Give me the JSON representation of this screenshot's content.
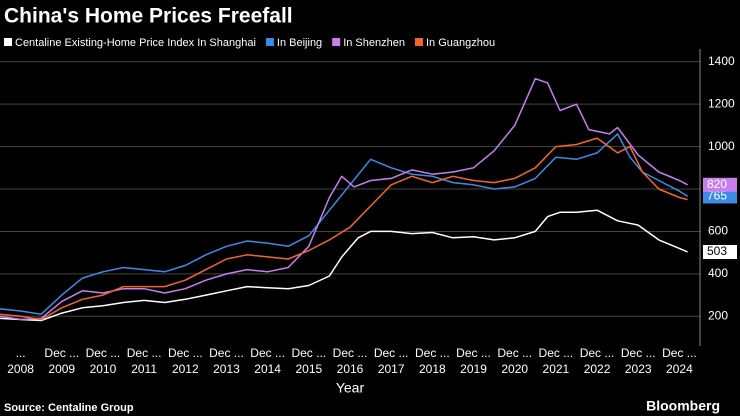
{
  "chart_data": {
    "type": "line",
    "title": "China's Home Prices Freefall",
    "x_label": "Year",
    "source": "Source: Centaline Group",
    "brand": "Bloomberg",
    "xlim": [
      2008,
      2025
    ],
    "xticks": [
      {
        "value": 2008.5,
        "label": "2008"
      },
      {
        "value": 2009.5,
        "label": "2009"
      },
      {
        "value": 2010.5,
        "label": "2010"
      },
      {
        "value": 2011.5,
        "label": "2011"
      },
      {
        "value": 2012.5,
        "label": "2012"
      },
      {
        "value": 2013.5,
        "label": "2013"
      },
      {
        "value": 2014.5,
        "label": "2014"
      },
      {
        "value": 2015.5,
        "label": "2015"
      },
      {
        "value": 2016.5,
        "label": "2016"
      },
      {
        "value": 2017.5,
        "label": "2017"
      },
      {
        "value": 2018.5,
        "label": "2018"
      },
      {
        "value": 2019.5,
        "label": "2019"
      },
      {
        "value": 2020.5,
        "label": "2020"
      },
      {
        "value": 2021.5,
        "label": "2021"
      },
      {
        "value": 2022.5,
        "label": "2022"
      },
      {
        "value": 2023.5,
        "label": "2023"
      },
      {
        "value": 2024.5,
        "label": "2024"
      }
    ],
    "xticks_minor": [
      {
        "value": 2008.5,
        "label": "..."
      },
      {
        "value": 2009.5,
        "label": "Dec ..."
      },
      {
        "value": 2010.5,
        "label": "Dec ..."
      },
      {
        "value": 2011.5,
        "label": "Dec ..."
      },
      {
        "value": 2012.5,
        "label": "Dec ..."
      },
      {
        "value": 2013.5,
        "label": "Dec ..."
      },
      {
        "value": 2014.5,
        "label": "Dec ..."
      },
      {
        "value": 2015.5,
        "label": "Dec ..."
      },
      {
        "value": 2016.5,
        "label": "Dec ..."
      },
      {
        "value": 2017.5,
        "label": "Dec ..."
      },
      {
        "value": 2018.5,
        "label": "Dec ..."
      },
      {
        "value": 2019.5,
        "label": "Dec ..."
      },
      {
        "value": 2020.5,
        "label": "Dec ..."
      },
      {
        "value": 2021.5,
        "label": "Dec ..."
      },
      {
        "value": 2022.5,
        "label": "Dec ..."
      },
      {
        "value": 2023.5,
        "label": "Dec ..."
      },
      {
        "value": 2024.5,
        "label": "Dec ..."
      }
    ],
    "ylim": [
      60,
      1460
    ],
    "yticks": [
      200,
      400,
      600,
      800,
      1000,
      1200,
      1400
    ],
    "grid": true,
    "series": [
      {
        "name": "Centaline Existing-Home Price Index In Shanghai",
        "color": "#ffffff",
        "x": [
          2008.0,
          2008.5,
          2009.0,
          2009.5,
          2010.0,
          2010.5,
          2011.0,
          2011.5,
          2012.0,
          2012.5,
          2013.0,
          2013.5,
          2014.0,
          2014.5,
          2015.0,
          2015.5,
          2016.0,
          2016.3,
          2016.7,
          2017.0,
          2017.5,
          2018.0,
          2018.5,
          2019.0,
          2019.5,
          2020.0,
          2020.5,
          2021.0,
          2021.3,
          2021.6,
          2022.0,
          2022.5,
          2023.0,
          2023.5,
          2024.0,
          2024.5,
          2024.7
        ],
        "values": [
          190,
          185,
          180,
          215,
          240,
          250,
          265,
          275,
          265,
          280,
          300,
          320,
          340,
          335,
          330,
          345,
          390,
          480,
          570,
          600,
          600,
          590,
          595,
          570,
          575,
          560,
          570,
          600,
          670,
          690,
          690,
          700,
          650,
          630,
          560,
          520,
          503
        ]
      },
      {
        "name": "In Beijing",
        "color": "#3c8ce7",
        "x": [
          2008.0,
          2008.5,
          2009.0,
          2009.5,
          2010.0,
          2010.5,
          2011.0,
          2011.5,
          2012.0,
          2012.5,
          2013.0,
          2013.5,
          2014.0,
          2014.5,
          2015.0,
          2015.5,
          2016.0,
          2016.5,
          2017.0,
          2017.5,
          2018.0,
          2018.5,
          2019.0,
          2019.5,
          2020.0,
          2020.5,
          2021.0,
          2021.5,
          2022.0,
          2022.5,
          2023.0,
          2023.3,
          2023.6,
          2024.0,
          2024.5,
          2024.7
        ],
        "values": [
          235,
          225,
          210,
          300,
          380,
          410,
          430,
          420,
          410,
          440,
          490,
          530,
          555,
          545,
          530,
          580,
          700,
          820,
          940,
          900,
          870,
          860,
          830,
          820,
          800,
          810,
          850,
          950,
          940,
          970,
          1060,
          950,
          880,
          840,
          790,
          765
        ]
      },
      {
        "name": "In Shenzhen",
        "color": "#c77ff0",
        "x": [
          2008.0,
          2008.5,
          2009.0,
          2009.5,
          2010.0,
          2010.5,
          2011.0,
          2011.5,
          2012.0,
          2012.5,
          2013.0,
          2013.5,
          2014.0,
          2014.5,
          2015.0,
          2015.5,
          2016.0,
          2016.3,
          2016.6,
          2017.0,
          2017.5,
          2018.0,
          2018.5,
          2019.0,
          2019.5,
          2020.0,
          2020.5,
          2021.0,
          2021.3,
          2021.6,
          2022.0,
          2022.3,
          2022.8,
          2023.0,
          2023.5,
          2024.0,
          2024.5,
          2024.7
        ],
        "values": [
          200,
          185,
          190,
          270,
          320,
          310,
          330,
          330,
          310,
          330,
          370,
          400,
          420,
          410,
          430,
          530,
          760,
          860,
          810,
          840,
          850,
          890,
          870,
          880,
          900,
          980,
          1100,
          1320,
          1300,
          1170,
          1200,
          1080,
          1060,
          1090,
          960,
          880,
          840,
          820
        ]
      },
      {
        "name": "In Guangzhou",
        "color": "#f2662e",
        "x": [
          2008.0,
          2008.5,
          2009.0,
          2009.5,
          2010.0,
          2010.5,
          2011.0,
          2011.5,
          2012.0,
          2012.5,
          2013.0,
          2013.5,
          2014.0,
          2014.5,
          2015.0,
          2015.5,
          2016.0,
          2016.5,
          2017.0,
          2017.5,
          2018.0,
          2018.5,
          2019.0,
          2019.5,
          2020.0,
          2020.5,
          2021.0,
          2021.5,
          2022.0,
          2022.5,
          2023.0,
          2023.3,
          2023.6,
          2024.0,
          2024.5,
          2024.7
        ],
        "values": [
          210,
          200,
          185,
          240,
          280,
          300,
          340,
          340,
          340,
          370,
          420,
          470,
          490,
          480,
          470,
          510,
          560,
          620,
          720,
          820,
          860,
          830,
          860,
          840,
          830,
          850,
          900,
          1000,
          1010,
          1040,
          970,
          1000,
          880,
          800,
          760,
          750
        ]
      }
    ]
  }
}
